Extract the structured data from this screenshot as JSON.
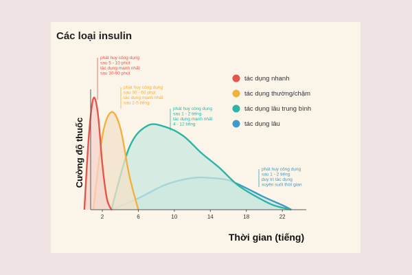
{
  "page": {
    "background": "#efe3e3",
    "card_background": "#fbf4e9"
  },
  "chart_data": {
    "type": "area",
    "title": "Các loại insulin",
    "xlabel": "Thời gian (tiếng)",
    "ylabel": "Cường độ thuốc",
    "xlim": [
      0,
      24
    ],
    "ylim": [
      0,
      1
    ],
    "x_ticks": [
      2,
      6,
      10,
      14,
      18,
      22
    ],
    "legend_position": "top-right",
    "grid": false,
    "series": [
      {
        "name": "tác dụng nhanh",
        "color": "#e4554a",
        "fill": "#f6d4cc",
        "x": [
          0,
          0.5,
          1,
          1.5,
          2,
          2.5,
          3
        ],
        "values": [
          0,
          0.65,
          0.98,
          0.85,
          0.4,
          0.1,
          0
        ]
      },
      {
        "name": "tác dụng thường/chậm",
        "color": "#f2b13c",
        "fill": "#f3e2c8",
        "x": [
          1,
          2,
          3,
          4,
          5,
          6
        ],
        "values": [
          0,
          0.65,
          0.86,
          0.72,
          0.3,
          0
        ]
      },
      {
        "name": "tác dụng lâu trung bình",
        "color": "#2bb5a4",
        "fill": "#c9e8de",
        "x": [
          3,
          5,
          7,
          9,
          11,
          13,
          15,
          17,
          19,
          21,
          23
        ],
        "values": [
          0,
          0.55,
          0.74,
          0.73,
          0.65,
          0.5,
          0.37,
          0.22,
          0.12,
          0.04,
          0
        ]
      },
      {
        "name": "tác dụng lâu",
        "color": "#3c9cc7",
        "fill": "#d6e4e6",
        "x": [
          3,
          6,
          9,
          12,
          14,
          16,
          18,
          20,
          22,
          23
        ],
        "values": [
          0,
          0.1,
          0.22,
          0.28,
          0.28,
          0.26,
          0.19,
          0.11,
          0.04,
          0
        ]
      }
    ],
    "annotations": [
      {
        "series": "tác dụng nhanh",
        "lines": [
          "phát huy công dụng",
          "sau 5 - 10 phút",
          "tác dụng mạnh nhất",
          "sau 30-90 phút"
        ],
        "at_x": 1
      },
      {
        "series": "tác dụng thường/chậm",
        "lines": [
          "phát huy công dụng",
          "sau 30 - 60 phút",
          "tác dụng mạnh nhất",
          "sau 2-5 tiếng"
        ],
        "at_x": 3
      },
      {
        "series": "tác dụng lâu trung bình",
        "lines": [
          "phát huy công dụng",
          "sau 1 - 2 tiếng",
          "tác dụng mạnh nhất",
          "4 - 12 tiếng"
        ],
        "at_x": 7
      },
      {
        "series": "tác dụng lâu",
        "lines": [
          "phát huy công dụng",
          "sau 1 - 2 tiếng",
          "duy trì tác dụng",
          "xuyên suốt thời gian"
        ],
        "at_x": 22
      }
    ]
  }
}
